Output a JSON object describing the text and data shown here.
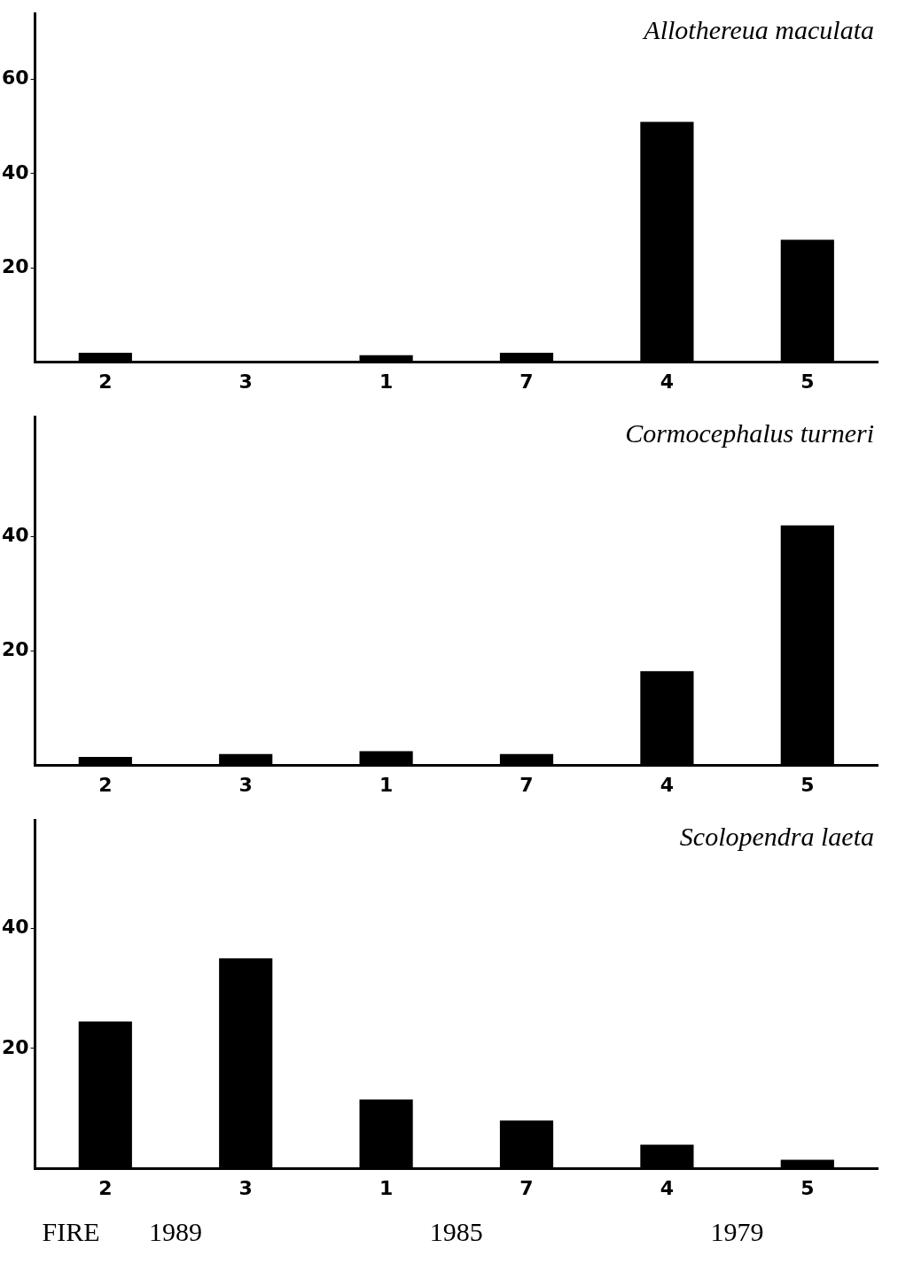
{
  "chart_data": [
    {
      "type": "bar",
      "title": "Allothereua maculata",
      "categories": [
        "2",
        "3",
        "1",
        "7",
        "4",
        "5"
      ],
      "values": [
        2,
        0,
        1.5,
        2,
        51,
        26
      ],
      "color": "#000000",
      "ylim": [
        0,
        74
      ],
      "yticks": [
        20,
        40,
        60
      ],
      "grid": false
    },
    {
      "type": "bar",
      "title": "Cormocephalus turneri",
      "categories": [
        "2",
        "3",
        "1",
        "7",
        "4",
        "5"
      ],
      "values": [
        1.5,
        2,
        2.5,
        2,
        16.5,
        42
      ],
      "color": "#000000",
      "ylim": [
        0,
        61
      ],
      "yticks": [
        20,
        40
      ],
      "grid": false
    },
    {
      "type": "bar",
      "title": "Scolopendra laeta",
      "categories": [
        "2",
        "3",
        "1",
        "7",
        "4",
        "5"
      ],
      "values": [
        24.5,
        35,
        11.5,
        8,
        4,
        1.5
      ],
      "color": "#000000",
      "ylim": [
        0,
        58
      ],
      "yticks": [
        20,
        40
      ],
      "grid": false,
      "annotations": [
        "FIRE",
        "1989",
        "1985",
        "1979"
      ]
    }
  ]
}
